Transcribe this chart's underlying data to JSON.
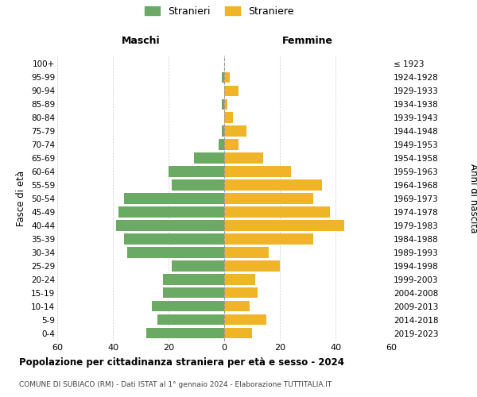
{
  "age_groups": [
    "0-4",
    "5-9",
    "10-14",
    "15-19",
    "20-24",
    "25-29",
    "30-34",
    "35-39",
    "40-44",
    "45-49",
    "50-54",
    "55-59",
    "60-64",
    "65-69",
    "70-74",
    "75-79",
    "80-84",
    "85-89",
    "90-94",
    "95-99",
    "100+"
  ],
  "birth_years": [
    "2019-2023",
    "2014-2018",
    "2009-2013",
    "2004-2008",
    "1999-2003",
    "1994-1998",
    "1989-1993",
    "1984-1988",
    "1979-1983",
    "1974-1978",
    "1969-1973",
    "1964-1968",
    "1959-1963",
    "1954-1958",
    "1949-1953",
    "1944-1948",
    "1939-1943",
    "1934-1938",
    "1929-1933",
    "1924-1928",
    "≤ 1923"
  ],
  "males": [
    28,
    24,
    26,
    22,
    22,
    19,
    35,
    36,
    39,
    38,
    36,
    19,
    20,
    11,
    2,
    1,
    0,
    1,
    0,
    1,
    0
  ],
  "females": [
    10,
    15,
    9,
    12,
    11,
    20,
    16,
    32,
    43,
    38,
    32,
    35,
    24,
    14,
    5,
    8,
    3,
    1,
    5,
    2,
    0
  ],
  "male_color": "#6aaa64",
  "female_color": "#f0b429",
  "male_label": "Stranieri",
  "female_label": "Straniere",
  "title": "Popolazione per cittadinanza straniera per età e sesso - 2024",
  "subtitle": "COMUNE DI SUBIACO (RM) - Dati ISTAT al 1° gennaio 2024 - Elaborazione TUTTITALIA.IT",
  "ylabel_left": "Fasce di età",
  "ylabel_right": "Anni di nascita",
  "xlabel_maschi": "Maschi",
  "xlabel_femmine": "Femmine",
  "xlim": 60,
  "background_color": "#ffffff",
  "grid_color": "#cccccc"
}
